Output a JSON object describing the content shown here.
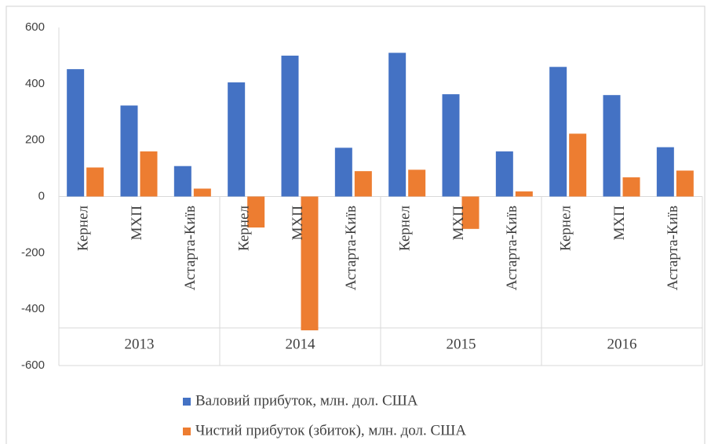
{
  "chart_data": {
    "type": "bar",
    "groups": [
      "2013",
      "2014",
      "2015",
      "2016"
    ],
    "categories": [
      "Кернел",
      "МХП",
      "Астарта-Київ",
      "Кернел",
      "МХП",
      "Астарта-Київ",
      "Кернел",
      "МХП",
      "Астарта-Київ",
      "Кернел",
      "МХП",
      "Астарта-Київ"
    ],
    "series": [
      {
        "name": "Валовий прибуток, млн. дол. США",
        "color": "#4472c4",
        "values": [
          452,
          323,
          108,
          405,
          500,
          173,
          510,
          363,
          160,
          460,
          360,
          175
        ]
      },
      {
        "name": "Чистий прибуток (збиток), млн. дол. США",
        "color": "#ed7d31",
        "values": [
          103,
          160,
          28,
          -110,
          -475,
          90,
          95,
          -115,
          18,
          223,
          68,
          92
        ]
      }
    ],
    "ylim": [
      -600,
      600
    ],
    "yticks": [
      -600,
      -400,
      -200,
      0,
      200,
      400,
      600
    ],
    "legend": "bottom"
  }
}
